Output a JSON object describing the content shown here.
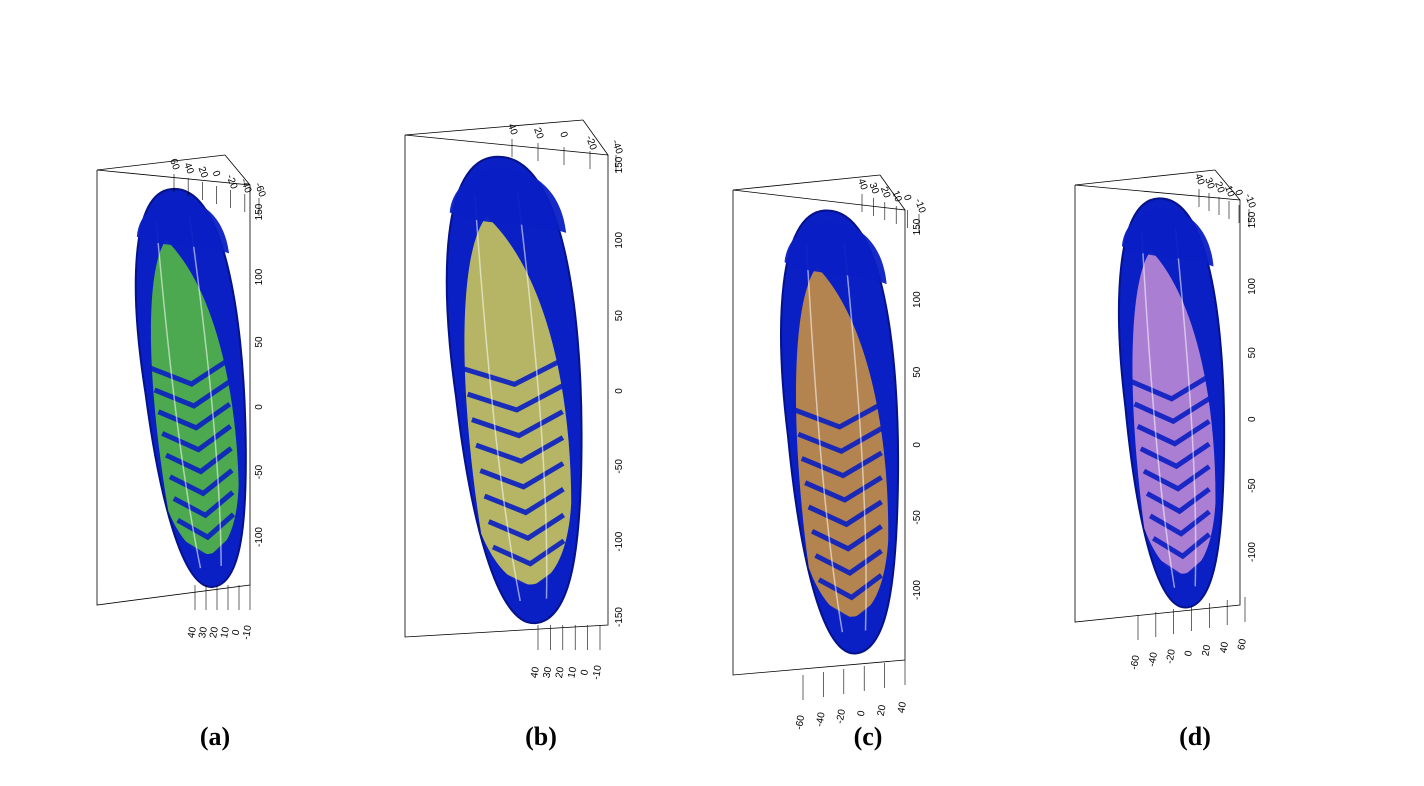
{
  "panels": [
    {
      "label": "(a)",
      "overlay_color": "#5fd12e",
      "base_color": "#0a1fc4",
      "vertical_ticks": [
        "150",
        "100",
        "50",
        "0",
        "-50",
        "-100"
      ],
      "top_ticks": [
        "60",
        "40",
        "20",
        "0",
        "-20",
        "-40",
        "-60"
      ],
      "bottom_ticks": [
        "40",
        "30",
        "20",
        "10",
        "0",
        "-10"
      ]
    },
    {
      "label": "(b)",
      "overlay_color": "#e6e04a",
      "base_color": "#0a1fc4",
      "vertical_ticks": [
        "150",
        "100",
        "50",
        "0",
        "-50",
        "-100",
        "-150"
      ],
      "top_ticks": [
        "40",
        "20",
        "0",
        "-20",
        "-40"
      ],
      "bottom_ticks": [
        "40",
        "30",
        "20",
        "10",
        "0",
        "-10"
      ]
    },
    {
      "label": "(c)",
      "overlay_color": "#e3a12e",
      "base_color": "#0a1fc4",
      "vertical_ticks": [
        "150",
        "100",
        "50",
        "0",
        "-50",
        "-100"
      ],
      "top_ticks": [
        "40",
        "30",
        "20",
        "10",
        "0",
        "-10"
      ],
      "bottom_ticks": [
        "-60",
        "-40",
        "-20",
        "0",
        "20",
        "40"
      ]
    },
    {
      "label": "(d)",
      "overlay_color": "#d79ad6",
      "base_color": "#0a1fc4",
      "vertical_ticks": [
        "150",
        "100",
        "50",
        "0",
        "-50",
        "-100"
      ],
      "top_ticks": [
        "40",
        "30",
        "20",
        "10",
        "0",
        "-10"
      ],
      "bottom_ticks": [
        "-60",
        "-40",
        "-20",
        "0",
        "20",
        "40",
        "60"
      ]
    }
  ]
}
